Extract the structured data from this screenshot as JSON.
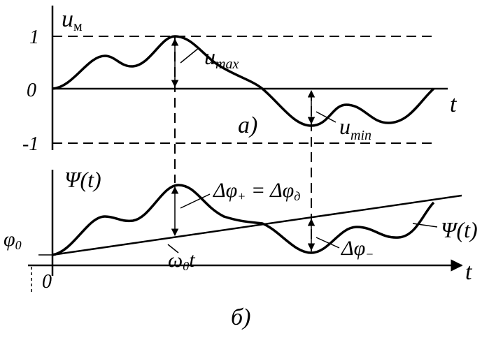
{
  "top": {
    "axis_label": {
      "main": "u",
      "sub": "м"
    },
    "ticks": [
      "1",
      "0",
      "-1"
    ],
    "x_label": "t",
    "caption": "а)",
    "max_label": {
      "main": "u",
      "sub": "max"
    },
    "min_label": {
      "main": "u",
      "sub": "min"
    }
  },
  "bottom": {
    "axis_label": "Ψ(t)",
    "curve_label": "Ψ(t)",
    "deviation_plus": {
      "a": "Δφ",
      "a_sub": "+",
      "eq": " = ",
      "b": "Δφ",
      "b_sub": "д"
    },
    "deviation_minus": {
      "main": "Δφ",
      "sub": "−"
    },
    "phase0": {
      "main": "φ",
      "sub": "0"
    },
    "line_label": {
      "main": "ω",
      "sub": "0",
      "tail": "t"
    },
    "origin": "0",
    "x_label": "t",
    "caption": "б)"
  }
}
